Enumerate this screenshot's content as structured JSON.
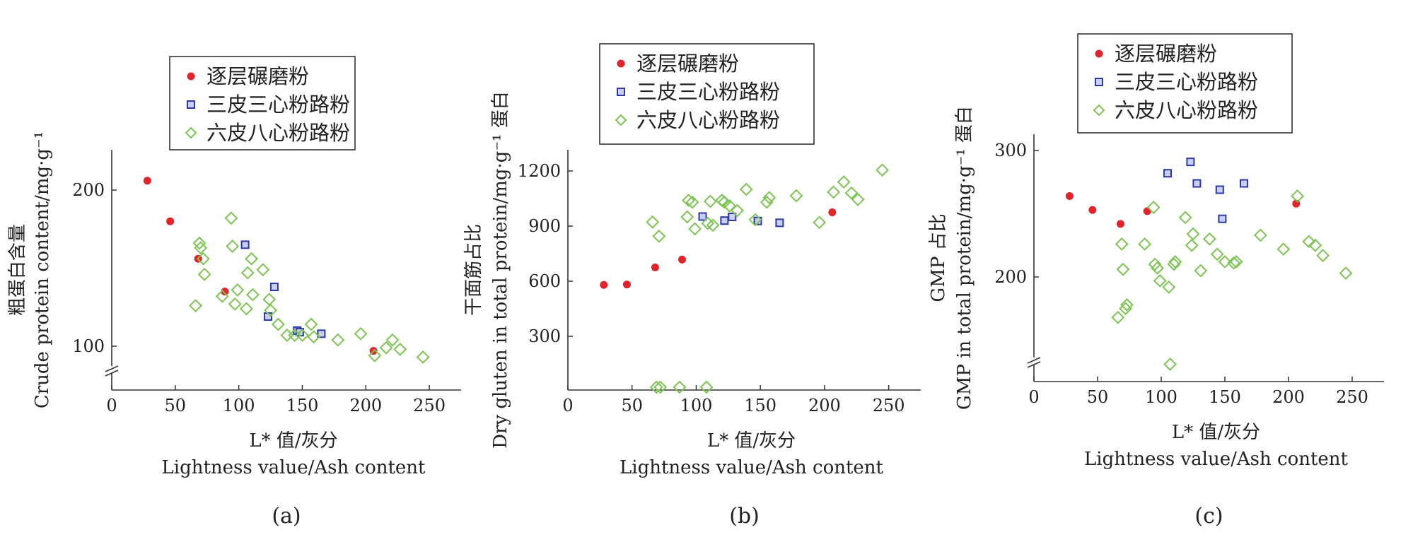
{
  "chart_data": [
    {
      "type": "scatter",
      "caption": "(a)",
      "xlabel_line1": "L* 值/灰分",
      "xlabel_line2": "Lightness value/Ash content",
      "ylabel_line1": "粗蛋白含量",
      "ylabel_line2": "Crude protein content/mg·g⁻¹",
      "xlim": [
        0,
        275
      ],
      "ylim": [
        75,
        225
      ],
      "y_axis_break": true,
      "xticks": [
        0,
        50,
        100,
        150,
        200,
        250
      ],
      "yticks": [
        100,
        200
      ],
      "legend_position": "top-center",
      "series": [
        {
          "name": "逐层碾磨粉",
          "marker": "filled-circle",
          "color": "#e3232a",
          "points": [
            [
              28,
              206
            ],
            [
              46,
              180
            ],
            [
              68,
              156
            ],
            [
              89,
              135
            ],
            [
              206,
              97
            ]
          ]
        },
        {
          "name": "三皮三心粉路粉",
          "marker": "square",
          "color": "#2b3aa8",
          "points": [
            [
              105,
              165
            ],
            [
              123,
              119
            ],
            [
              128,
              138
            ],
            [
              146,
              110
            ],
            [
              148,
              109
            ],
            [
              165,
              108
            ]
          ]
        },
        {
          "name": "六皮八心粉路粉",
          "marker": "open-diamond",
          "color": "#7cc552",
          "points": [
            [
              66,
              126
            ],
            [
              69,
              166
            ],
            [
              70,
              163
            ],
            [
              72,
              156
            ],
            [
              73,
              146
            ],
            [
              87,
              132
            ],
            [
              94,
              182
            ],
            [
              95,
              164
            ],
            [
              97,
              127
            ],
            [
              99,
              136
            ],
            [
              106,
              124
            ],
            [
              107,
              147
            ],
            [
              110,
              156
            ],
            [
              111,
              133
            ],
            [
              119,
              149
            ],
            [
              124,
              130
            ],
            [
              125,
              123
            ],
            [
              131,
              114
            ],
            [
              138,
              107
            ],
            [
              144,
              107
            ],
            [
              150,
              107
            ],
            [
              157,
              114
            ],
            [
              159,
              106
            ],
            [
              178,
              104
            ],
            [
              196,
              108
            ],
            [
              207,
              94
            ],
            [
              216,
              99
            ],
            [
              221,
              104
            ],
            [
              227,
              98
            ],
            [
              245,
              93
            ]
          ]
        }
      ]
    },
    {
      "type": "scatter",
      "caption": "(b)",
      "xlabel_line1": "L* 值/灰分",
      "xlabel_line2": "Lightness value/Ash content",
      "ylabel_line1": "干面筋占比",
      "ylabel_line2": "Dry gluten in total protein/mg·g⁻¹ 蛋白",
      "xlim": [
        0,
        275
      ],
      "ylim": [
        0,
        1300
      ],
      "xticks": [
        0,
        50,
        100,
        150,
        200,
        250
      ],
      "yticks": [
        300,
        600,
        900,
        1200
      ],
      "legend_position": "top-center",
      "series": [
        {
          "name": "逐层碾磨粉",
          "marker": "filled-circle",
          "color": "#e3232a",
          "points": [
            [
              28,
              580
            ],
            [
              46,
              582
            ],
            [
              68,
              675
            ],
            [
              89,
              718
            ],
            [
              206,
              975
            ]
          ]
        },
        {
          "name": "三皮三心粉路粉",
          "marker": "square",
          "color": "#2b3aa8",
          "points": [
            [
              105,
              952
            ],
            [
              122,
              930
            ],
            [
              128,
              950
            ],
            [
              148,
              928
            ],
            [
              165,
              918
            ]
          ]
        },
        {
          "name": "六皮八心粉路粉",
          "marker": "open-diamond",
          "color": "#7cc552",
          "points": [
            [
              66,
              922
            ],
            [
              69,
              0
            ],
            [
              71,
              845
            ],
            [
              72,
              0
            ],
            [
              87,
              0
            ],
            [
              93,
              950
            ],
            [
              94,
              1040
            ],
            [
              97,
              1030
            ],
            [
              99,
              885
            ],
            [
              108,
              0
            ],
            [
              109,
              915
            ],
            [
              111,
              1035
            ],
            [
              113,
              905
            ],
            [
              120,
              1040
            ],
            [
              122,
              1030
            ],
            [
              126,
              1010
            ],
            [
              132,
              985
            ],
            [
              139,
              1100
            ],
            [
              146,
              935
            ],
            [
              155,
              1030
            ],
            [
              157,
              1055
            ],
            [
              178,
              1065
            ],
            [
              196,
              920
            ],
            [
              207,
              1085
            ],
            [
              215,
              1140
            ],
            [
              221,
              1080
            ],
            [
              226,
              1045
            ],
            [
              245,
              1205
            ]
          ]
        }
      ]
    },
    {
      "type": "scatter",
      "caption": "(c)",
      "xlabel_line1": "L* 值/灰分",
      "xlabel_line2": "Lightness value/Ash content",
      "ylabel_line1": "GMP 占比",
      "ylabel_line2": "GMP in total protein/mg·g⁻¹ 蛋白",
      "xlim": [
        0,
        275
      ],
      "ylim": [
        115,
        300
      ],
      "y_axis_break": true,
      "xticks": [
        0,
        50,
        100,
        150,
        200,
        250
      ],
      "yticks": [
        200,
        300
      ],
      "legend_position": "top-left",
      "series": [
        {
          "name": "逐层碾磨粉",
          "marker": "filled-circle",
          "color": "#e3232a",
          "points": [
            [
              28,
              264
            ],
            [
              46,
              253
            ],
            [
              68,
              242
            ],
            [
              89,
              252
            ],
            [
              206,
              258
            ]
          ]
        },
        {
          "name": "三皮三心粉路粉",
          "marker": "square",
          "color": "#2b3aa8",
          "points": [
            [
              105,
              282
            ],
            [
              123,
              291
            ],
            [
              128,
              274
            ],
            [
              146,
              269
            ],
            [
              148,
              246
            ],
            [
              165,
              274
            ]
          ]
        },
        {
          "name": "六皮八心粉路粉",
          "marker": "open-diamond",
          "color": "#7cc552",
          "points": [
            [
              66,
              168
            ],
            [
              69,
              226
            ],
            [
              70,
              206
            ],
            [
              72,
              175
            ],
            [
              73,
              178
            ],
            [
              87,
              226
            ],
            [
              94,
              255
            ],
            [
              95,
              210
            ],
            [
              97,
              207
            ],
            [
              99,
              197
            ],
            [
              106,
              192
            ],
            [
              107,
              131
            ],
            [
              110,
              210
            ],
            [
              111,
              212
            ],
            [
              119,
              247
            ],
            [
              124,
              225
            ],
            [
              125,
              234
            ],
            [
              131,
              205
            ],
            [
              138,
              230
            ],
            [
              144,
              218
            ],
            [
              150,
              212
            ],
            [
              157,
              211
            ],
            [
              159,
              212
            ],
            [
              178,
              233
            ],
            [
              196,
              222
            ],
            [
              207,
              264
            ],
            [
              216,
              228
            ],
            [
              221,
              225
            ],
            [
              227,
              217
            ],
            [
              245,
              203
            ]
          ]
        }
      ]
    }
  ]
}
